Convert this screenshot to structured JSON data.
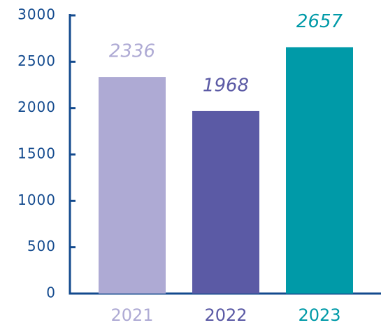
{
  "chart_data": {
    "type": "bar",
    "categories": [
      "2021",
      "2022",
      "2023"
    ],
    "values": [
      2336,
      1968,
      2657
    ],
    "colors": [
      "#aeaad4",
      "#5b5aa5",
      "#009aa8"
    ],
    "axis_color": "#134a8e",
    "ylim": [
      0,
      3000
    ],
    "yticks": [
      0,
      500,
      1000,
      1500,
      2000,
      2500,
      3000
    ],
    "grid": false
  }
}
